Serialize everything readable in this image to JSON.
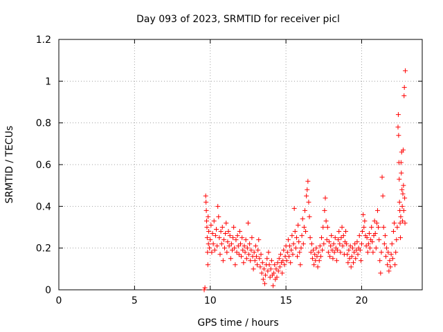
{
  "chart_data": {
    "type": "scatter",
    "title": "Day 093 of 2023, SRMTID for receiver picl",
    "xlabel": "GPS time / hours",
    "ylabel": "SRMTID / TECUs",
    "xlim": [
      0,
      24
    ],
    "ylim": [
      0,
      1.2
    ],
    "x_ticks": [
      0,
      5,
      10,
      15,
      20
    ],
    "x_tick_labels": [
      "0",
      "5",
      "10",
      "15",
      "20"
    ],
    "y_ticks": [
      0,
      0.2,
      0.4,
      0.6,
      0.8,
      1.0,
      1.2
    ],
    "y_tick_labels": [
      "0",
      "0.2",
      "0.4",
      "0.6",
      "0.8",
      "1",
      "1.2"
    ],
    "grid": true,
    "marker": "+",
    "color": "#ff0000",
    "series": [
      {
        "name": "SRMTID",
        "points": [
          [
            9.6,
            0.0
          ],
          [
            9.65,
            0.01
          ],
          [
            9.7,
            0.45
          ],
          [
            9.72,
            0.42
          ],
          [
            9.74,
            0.38
          ],
          [
            9.76,
            0.33
          ],
          [
            9.78,
            0.3
          ],
          [
            9.8,
            0.25
          ],
          [
            9.82,
            0.18
          ],
          [
            9.84,
            0.12
          ],
          [
            9.86,
            0.35
          ],
          [
            9.88,
            0.22
          ],
          [
            9.9,
            0.28
          ],
          [
            9.95,
            0.2
          ],
          [
            10.0,
            0.24
          ],
          [
            10.05,
            0.31
          ],
          [
            10.1,
            0.18
          ],
          [
            10.15,
            0.27
          ],
          [
            10.2,
            0.22
          ],
          [
            10.25,
            0.33
          ],
          [
            10.3,
            0.19
          ],
          [
            10.35,
            0.26
          ],
          [
            10.4,
            0.29
          ],
          [
            10.45,
            0.21
          ],
          [
            10.5,
            0.4
          ],
          [
            10.55,
            0.35
          ],
          [
            10.6,
            0.25
          ],
          [
            10.65,
            0.17
          ],
          [
            10.7,
            0.28
          ],
          [
            10.75,
            0.22
          ],
          [
            10.8,
            0.3
          ],
          [
            10.85,
            0.14
          ],
          [
            10.9,
            0.24
          ],
          [
            10.95,
            0.2
          ],
          [
            11.0,
            0.27
          ],
          [
            11.05,
            0.32
          ],
          [
            11.1,
            0.18
          ],
          [
            11.15,
            0.23
          ],
          [
            11.2,
            0.28
          ],
          [
            11.25,
            0.21
          ],
          [
            11.3,
            0.26
          ],
          [
            11.35,
            0.15
          ],
          [
            11.4,
            0.22
          ],
          [
            11.45,
            0.19
          ],
          [
            11.5,
            0.25
          ],
          [
            11.55,
            0.3
          ],
          [
            11.6,
            0.2
          ],
          [
            11.65,
            0.12
          ],
          [
            11.7,
            0.24
          ],
          [
            11.75,
            0.18
          ],
          [
            11.8,
            0.26
          ],
          [
            11.85,
            0.21
          ],
          [
            11.9,
            0.17
          ],
          [
            11.95,
            0.28
          ],
          [
            12.0,
            0.22
          ],
          [
            12.05,
            0.16
          ],
          [
            12.1,
            0.25
          ],
          [
            12.15,
            0.19
          ],
          [
            12.2,
            0.13
          ],
          [
            12.25,
            0.21
          ],
          [
            12.3,
            0.18
          ],
          [
            12.35,
            0.24
          ],
          [
            12.4,
            0.15
          ],
          [
            12.45,
            0.2
          ],
          [
            12.5,
            0.32
          ],
          [
            12.55,
            0.17
          ],
          [
            12.6,
            0.22
          ],
          [
            12.65,
            0.14
          ],
          [
            12.7,
            0.19
          ],
          [
            12.75,
            0.25
          ],
          [
            12.8,
            0.16
          ],
          [
            12.85,
            0.1
          ],
          [
            12.9,
            0.18
          ],
          [
            12.95,
            0.14
          ],
          [
            13.0,
            0.21
          ],
          [
            13.05,
            0.16
          ],
          [
            13.1,
            0.12
          ],
          [
            13.15,
            0.19
          ],
          [
            13.2,
            0.24
          ],
          [
            13.25,
            0.15
          ],
          [
            13.3,
            0.11
          ],
          [
            13.35,
            0.17
          ],
          [
            13.4,
            0.08
          ],
          [
            13.45,
            0.13
          ],
          [
            13.5,
            0.05
          ],
          [
            13.55,
            0.1
          ],
          [
            13.6,
            0.03
          ],
          [
            13.65,
            0.07
          ],
          [
            13.7,
            0.12
          ],
          [
            13.75,
            0.15
          ],
          [
            13.8,
            0.09
          ],
          [
            13.85,
            0.18
          ],
          [
            13.9,
            0.12
          ],
          [
            13.95,
            0.06
          ],
          [
            14.0,
            0.1
          ],
          [
            14.05,
            0.14
          ],
          [
            14.1,
            0.07
          ],
          [
            14.15,
            0.02
          ],
          [
            14.2,
            0.08
          ],
          [
            14.25,
            0.12
          ],
          [
            14.3,
            0.05
          ],
          [
            14.35,
            0.1
          ],
          [
            14.4,
            0.06
          ],
          [
            14.45,
            0.13
          ],
          [
            14.5,
            0.09
          ],
          [
            14.55,
            0.15
          ],
          [
            14.6,
            0.11
          ],
          [
            14.65,
            0.17
          ],
          [
            14.7,
            0.13
          ],
          [
            14.75,
            0.08
          ],
          [
            14.8,
            0.14
          ],
          [
            14.85,
            0.19
          ],
          [
            14.9,
            0.12
          ],
          [
            14.95,
            0.16
          ],
          [
            15.0,
            0.21
          ],
          [
            15.05,
            0.14
          ],
          [
            15.1,
            0.18
          ],
          [
            15.15,
            0.24
          ],
          [
            15.2,
            0.16
          ],
          [
            15.25,
            0.21
          ],
          [
            15.3,
            0.13
          ],
          [
            15.35,
            0.19
          ],
          [
            15.4,
            0.26
          ],
          [
            15.45,
            0.17
          ],
          [
            15.5,
            0.22
          ],
          [
            15.55,
            0.39
          ],
          [
            15.6,
            0.28
          ],
          [
            15.65,
            0.2
          ],
          [
            15.7,
            0.25
          ],
          [
            15.75,
            0.16
          ],
          [
            15.8,
            0.31
          ],
          [
            15.85,
            0.23
          ],
          [
            15.9,
            0.18
          ],
          [
            15.95,
            0.12
          ],
          [
            16.0,
            0.2
          ],
          [
            16.05,
            0.26
          ],
          [
            16.1,
            0.34
          ],
          [
            16.15,
            0.22
          ],
          [
            16.2,
            0.3
          ],
          [
            16.25,
            0.38
          ],
          [
            16.3,
            0.28
          ],
          [
            16.35,
            0.45
          ],
          [
            16.4,
            0.48
          ],
          [
            16.45,
            0.52
          ],
          [
            16.5,
            0.42
          ],
          [
            16.55,
            0.35
          ],
          [
            16.6,
            0.25
          ],
          [
            16.65,
            0.18
          ],
          [
            16.7,
            0.22
          ],
          [
            16.75,
            0.15
          ],
          [
            16.8,
            0.19
          ],
          [
            16.85,
            0.12
          ],
          [
            16.9,
            0.17
          ],
          [
            16.95,
            0.14
          ],
          [
            17.0,
            0.2
          ],
          [
            17.05,
            0.16
          ],
          [
            17.1,
            0.11
          ],
          [
            17.15,
            0.18
          ],
          [
            17.2,
            0.14
          ],
          [
            17.25,
            0.21
          ],
          [
            17.3,
            0.16
          ],
          [
            17.35,
            0.25
          ],
          [
            17.4,
            0.19
          ],
          [
            17.45,
            0.3
          ],
          [
            17.5,
            0.22
          ],
          [
            17.55,
            0.38
          ],
          [
            17.6,
            0.44
          ],
          [
            17.65,
            0.33
          ],
          [
            17.7,
            0.24
          ],
          [
            17.75,
            0.3
          ],
          [
            17.8,
            0.18
          ],
          [
            17.85,
            0.23
          ],
          [
            17.9,
            0.16
          ],
          [
            17.95,
            0.21
          ],
          [
            18.0,
            0.26
          ],
          [
            18.05,
            0.19
          ],
          [
            18.1,
            0.15
          ],
          [
            18.15,
            0.22
          ],
          [
            18.2,
            0.18
          ],
          [
            18.25,
            0.25
          ],
          [
            18.3,
            0.2
          ],
          [
            18.35,
            0.14
          ],
          [
            18.4,
            0.19
          ],
          [
            18.45,
            0.24
          ],
          [
            18.5,
            0.28
          ],
          [
            18.55,
            0.22
          ],
          [
            18.6,
            0.18
          ],
          [
            18.65,
            0.25
          ],
          [
            18.7,
            0.3
          ],
          [
            18.75,
            0.21
          ],
          [
            18.8,
            0.26
          ],
          [
            18.85,
            0.17
          ],
          [
            18.9,
            0.23
          ],
          [
            18.95,
            0.28
          ],
          [
            19.0,
            0.22
          ],
          [
            19.05,
            0.17
          ],
          [
            19.1,
            0.13
          ],
          [
            19.15,
            0.19
          ],
          [
            19.2,
            0.15
          ],
          [
            19.25,
            0.21
          ],
          [
            19.3,
            0.11
          ],
          [
            19.35,
            0.16
          ],
          [
            19.4,
            0.2
          ],
          [
            19.45,
            0.13
          ],
          [
            19.5,
            0.18
          ],
          [
            19.55,
            0.22
          ],
          [
            19.6,
            0.15
          ],
          [
            19.65,
            0.19
          ],
          [
            19.7,
            0.23
          ],
          [
            19.75,
            0.17
          ],
          [
            19.8,
            0.2
          ],
          [
            19.85,
            0.26
          ],
          [
            19.9,
            0.19
          ],
          [
            19.95,
            0.14
          ],
          [
            20.0,
            0.22
          ],
          [
            20.05,
            0.28
          ],
          [
            20.1,
            0.36
          ],
          [
            20.15,
            0.3
          ],
          [
            20.2,
            0.33
          ],
          [
            20.25,
            0.26
          ],
          [
            20.3,
            0.21
          ],
          [
            20.35,
            0.25
          ],
          [
            20.4,
            0.18
          ],
          [
            20.45,
            0.22
          ],
          [
            20.5,
            0.27
          ],
          [
            20.55,
            0.2
          ],
          [
            20.6,
            0.24
          ],
          [
            20.65,
            0.3
          ],
          [
            20.7,
            0.23
          ],
          [
            20.75,
            0.18
          ],
          [
            20.8,
            0.26
          ],
          [
            20.85,
            0.33
          ],
          [
            20.9,
            0.27
          ],
          [
            20.95,
            0.2
          ],
          [
            21.0,
            0.32
          ],
          [
            21.05,
            0.38
          ],
          [
            21.1,
            0.3
          ],
          [
            21.15,
            0.24
          ],
          [
            21.2,
            0.14
          ],
          [
            21.25,
            0.08
          ],
          [
            21.3,
            0.18
          ],
          [
            21.35,
            0.54
          ],
          [
            21.4,
            0.45
          ],
          [
            21.45,
            0.3
          ],
          [
            21.5,
            0.22
          ],
          [
            21.55,
            0.26
          ],
          [
            21.6,
            0.16
          ],
          [
            21.65,
            0.2
          ],
          [
            21.7,
            0.12
          ],
          [
            21.75,
            0.18
          ],
          [
            21.8,
            0.09
          ],
          [
            21.85,
            0.14
          ],
          [
            21.9,
            0.11
          ],
          [
            21.95,
            0.17
          ],
          [
            22.0,
            0.22
          ],
          [
            22.05,
            0.15
          ],
          [
            22.1,
            0.28
          ],
          [
            22.15,
            0.32
          ],
          [
            22.2,
            0.12
          ],
          [
            22.25,
            0.18
          ],
          [
            22.3,
            0.24
          ],
          [
            22.35,
            0.3
          ],
          [
            22.4,
            0.78
          ],
          [
            22.42,
            0.84
          ],
          [
            22.44,
            0.74
          ],
          [
            22.46,
            0.61
          ],
          [
            22.48,
            0.53
          ],
          [
            22.5,
            0.42
          ],
          [
            22.52,
            0.38
          ],
          [
            22.54,
            0.32
          ],
          [
            22.56,
            0.25
          ],
          [
            22.58,
            0.35
          ],
          [
            22.6,
            0.61
          ],
          [
            22.62,
            0.56
          ],
          [
            22.64,
            0.66
          ],
          [
            22.66,
            0.48
          ],
          [
            22.68,
            0.4
          ],
          [
            22.7,
            0.33
          ],
          [
            22.72,
            0.46
          ],
          [
            22.74,
            0.67
          ],
          [
            22.76,
            0.5
          ],
          [
            22.78,
            0.38
          ],
          [
            22.8,
            0.93
          ],
          [
            22.82,
            0.97
          ],
          [
            22.84,
            0.44
          ],
          [
            22.86,
            0.32
          ],
          [
            22.88,
            1.05
          ]
        ]
      }
    ]
  }
}
